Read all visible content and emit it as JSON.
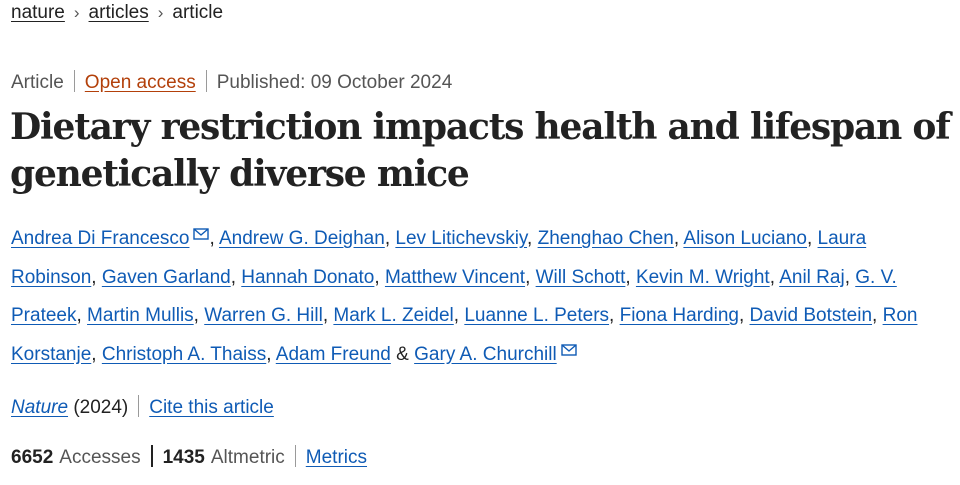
{
  "breadcrumb": {
    "items": [
      "nature",
      "articles"
    ],
    "current": "article",
    "separator": "›"
  },
  "meta": {
    "type": "Article",
    "access": "Open access",
    "published": "Published: 09 October 2024"
  },
  "title": "Dietary restriction impacts health and lifespan of genetically diverse mice",
  "authors": {
    "list": [
      {
        "name": "Andrea Di Francesco",
        "mail": true
      },
      {
        "name": "Andrew G. Deighan"
      },
      {
        "name": "Lev Litichevskiy"
      },
      {
        "name": "Zhenghao Chen"
      },
      {
        "name": "Alison Luciano"
      },
      {
        "name": "Laura Robinson"
      },
      {
        "name": "Gaven Garland"
      },
      {
        "name": "Hannah Donato"
      },
      {
        "name": "Matthew Vincent"
      },
      {
        "name": "Will Schott"
      },
      {
        "name": "Kevin M. Wright"
      },
      {
        "name": "Anil Raj"
      },
      {
        "name": "G. V. Prateek"
      },
      {
        "name": "Martin Mullis"
      },
      {
        "name": "Warren G. Hill"
      },
      {
        "name": "Mark L. Zeidel"
      },
      {
        "name": "Luanne L. Peters"
      },
      {
        "name": "Fiona Harding"
      },
      {
        "name": "David Botstein"
      },
      {
        "name": "Ron Korstanje"
      },
      {
        "name": "Christoph A. Thaiss"
      },
      {
        "name": "Adam Freund"
      },
      {
        "name": "Gary A. Churchill",
        "mail": true
      }
    ],
    "comma": ",",
    "ampersand": "&"
  },
  "journal": {
    "name": "Nature",
    "year": "(2024)",
    "cite": "Cite this article"
  },
  "metrics": {
    "accesses_count": "6652",
    "accesses_label": "Accesses",
    "altmetric_count": "1435",
    "altmetric_label": "Altmetric",
    "link": "Metrics"
  },
  "colors": {
    "link": "#0f5bb5",
    "open_access": "#b3400a",
    "text": "#222222",
    "muted": "#555555"
  },
  "icons": {
    "mail": "envelope-icon"
  }
}
